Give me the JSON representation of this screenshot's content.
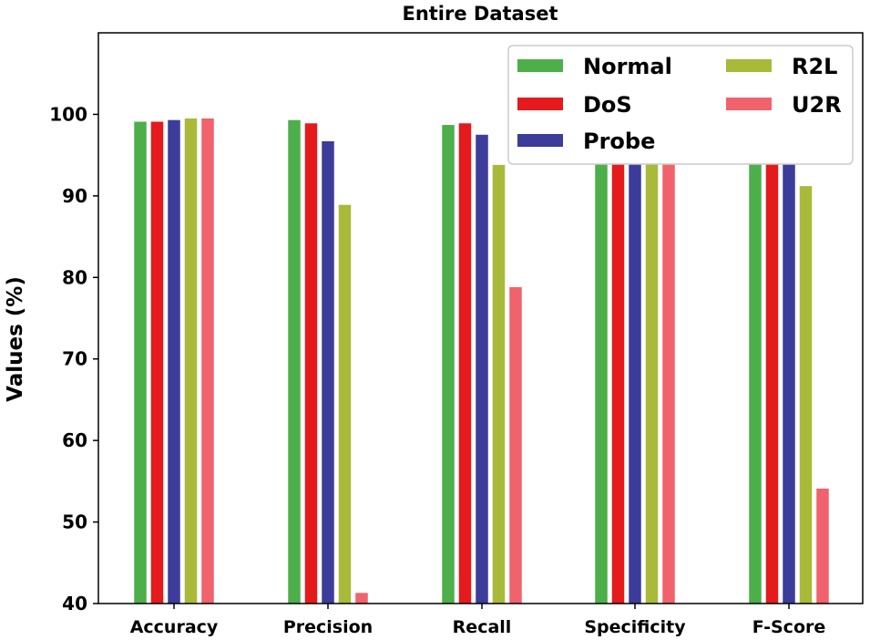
{
  "chart_data": {
    "type": "bar",
    "title": "Entire Dataset",
    "xlabel": "",
    "ylabel": "Values (%)",
    "ylim": [
      40,
      110
    ],
    "yticks": [
      40,
      50,
      60,
      70,
      80,
      90,
      100
    ],
    "grid": false,
    "legend_position": "top-right",
    "legend_columns": 2,
    "categories": [
      "Accuracy",
      "Precision",
      "Recall",
      "Specificity",
      "F-Score"
    ],
    "series": [
      {
        "name": "Normal",
        "color": "#4daf4a",
        "values": [
          99.1,
          99.3,
          98.7,
          99.3,
          99.1
        ]
      },
      {
        "name": "DoS",
        "color": "#e41a1c",
        "values": [
          99.1,
          98.9,
          98.9,
          99.3,
          98.9
        ]
      },
      {
        "name": "Probe",
        "color": "#3c3c9a",
        "values": [
          99.3,
          96.7,
          97.5,
          99.5,
          97.1
        ]
      },
      {
        "name": "R2L",
        "color": "#a9ba3a",
        "values": [
          99.5,
          88.9,
          93.8,
          99.5,
          91.2
        ]
      },
      {
        "name": "U2R",
        "color": "#f0626c",
        "values": [
          99.5,
          41.3,
          78.8,
          99.7,
          54.1
        ]
      }
    ]
  }
}
